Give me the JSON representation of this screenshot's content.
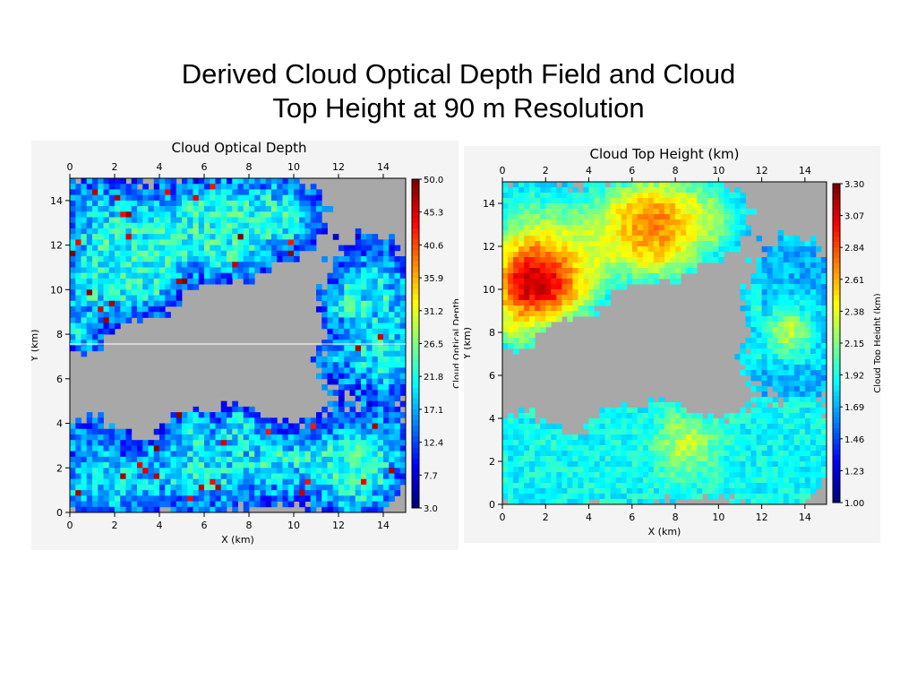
{
  "slide": {
    "title_line1": "Derived Cloud Optical Depth Field and Cloud",
    "title_line2": "Top Height at 90 m Resolution"
  },
  "chart_data": [
    {
      "type": "heatmap",
      "title": "Cloud Optical Depth",
      "xlabel": "X (km)",
      "ylabel": "Y (km)",
      "xlim": [
        0,
        15
      ],
      "ylim": [
        0,
        15
      ],
      "x_ticks": [
        "0",
        "2",
        "4",
        "6",
        "8",
        "10",
        "12",
        "14"
      ],
      "y_ticks": [
        "0",
        "2",
        "4",
        "6",
        "8",
        "10",
        "12",
        "14"
      ],
      "colorbar_label": "Cloud Optical Depth",
      "colorbar_ticks": [
        "50.0",
        "45.3",
        "40.6",
        "35.9",
        "31.2",
        "26.5",
        "21.8",
        "17.1",
        "12.4",
        "7.7",
        "3.0"
      ],
      "colorbar_range": [
        3.0,
        50.0
      ],
      "no_data_color": "#a8a8a8"
    },
    {
      "type": "heatmap",
      "title": "Cloud Top Height (km)",
      "xlabel": "X (km)",
      "ylabel": "Y (km)",
      "xlim": [
        0,
        15
      ],
      "ylim": [
        0,
        15
      ],
      "x_ticks": [
        "0",
        "2",
        "4",
        "6",
        "8",
        "10",
        "12",
        "14"
      ],
      "y_ticks": [
        "0",
        "2",
        "4",
        "6",
        "8",
        "10",
        "12",
        "14"
      ],
      "colorbar_label": "Cloud Top Height (km)",
      "colorbar_ticks": [
        "3.30",
        "3.07",
        "2.84",
        "2.61",
        "2.38",
        "2.15",
        "1.92",
        "1.69",
        "1.46",
        "1.23",
        "1.00"
      ],
      "colorbar_range": [
        1.0,
        3.3
      ],
      "no_data_color": "#a8a8a8"
    }
  ]
}
